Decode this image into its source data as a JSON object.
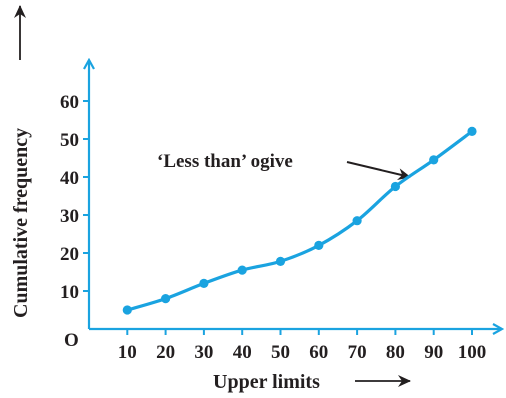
{
  "chart_data": {
    "type": "line",
    "title": "",
    "xlabel": "Upper limits",
    "ylabel": "Cumulative frequency",
    "origin_label": "O",
    "x": [
      10,
      20,
      30,
      40,
      50,
      60,
      70,
      80,
      90,
      100
    ],
    "x_tick_labels": [
      "10",
      "20",
      "30",
      "40",
      "50",
      "60",
      "70",
      "80",
      "90",
      "100"
    ],
    "y_ticks": [
      10,
      20,
      30,
      40,
      50,
      60
    ],
    "y_tick_labels": [
      "10",
      "20",
      "30",
      "40",
      "50",
      "60"
    ],
    "series": [
      {
        "values": [
          5,
          8,
          12,
          15.5,
          17.8,
          22,
          28.5,
          37.5,
          44.5,
          52
        ]
      }
    ],
    "annotation": "‘Less than’ ogive",
    "xlim": [
      0,
      105
    ],
    "ylim": [
      0,
      68
    ],
    "grid": false,
    "colors": {
      "line": "#1aa3e0",
      "axis": "#1aa3e0",
      "text": "#231f20",
      "arrow": "#231f20"
    }
  }
}
